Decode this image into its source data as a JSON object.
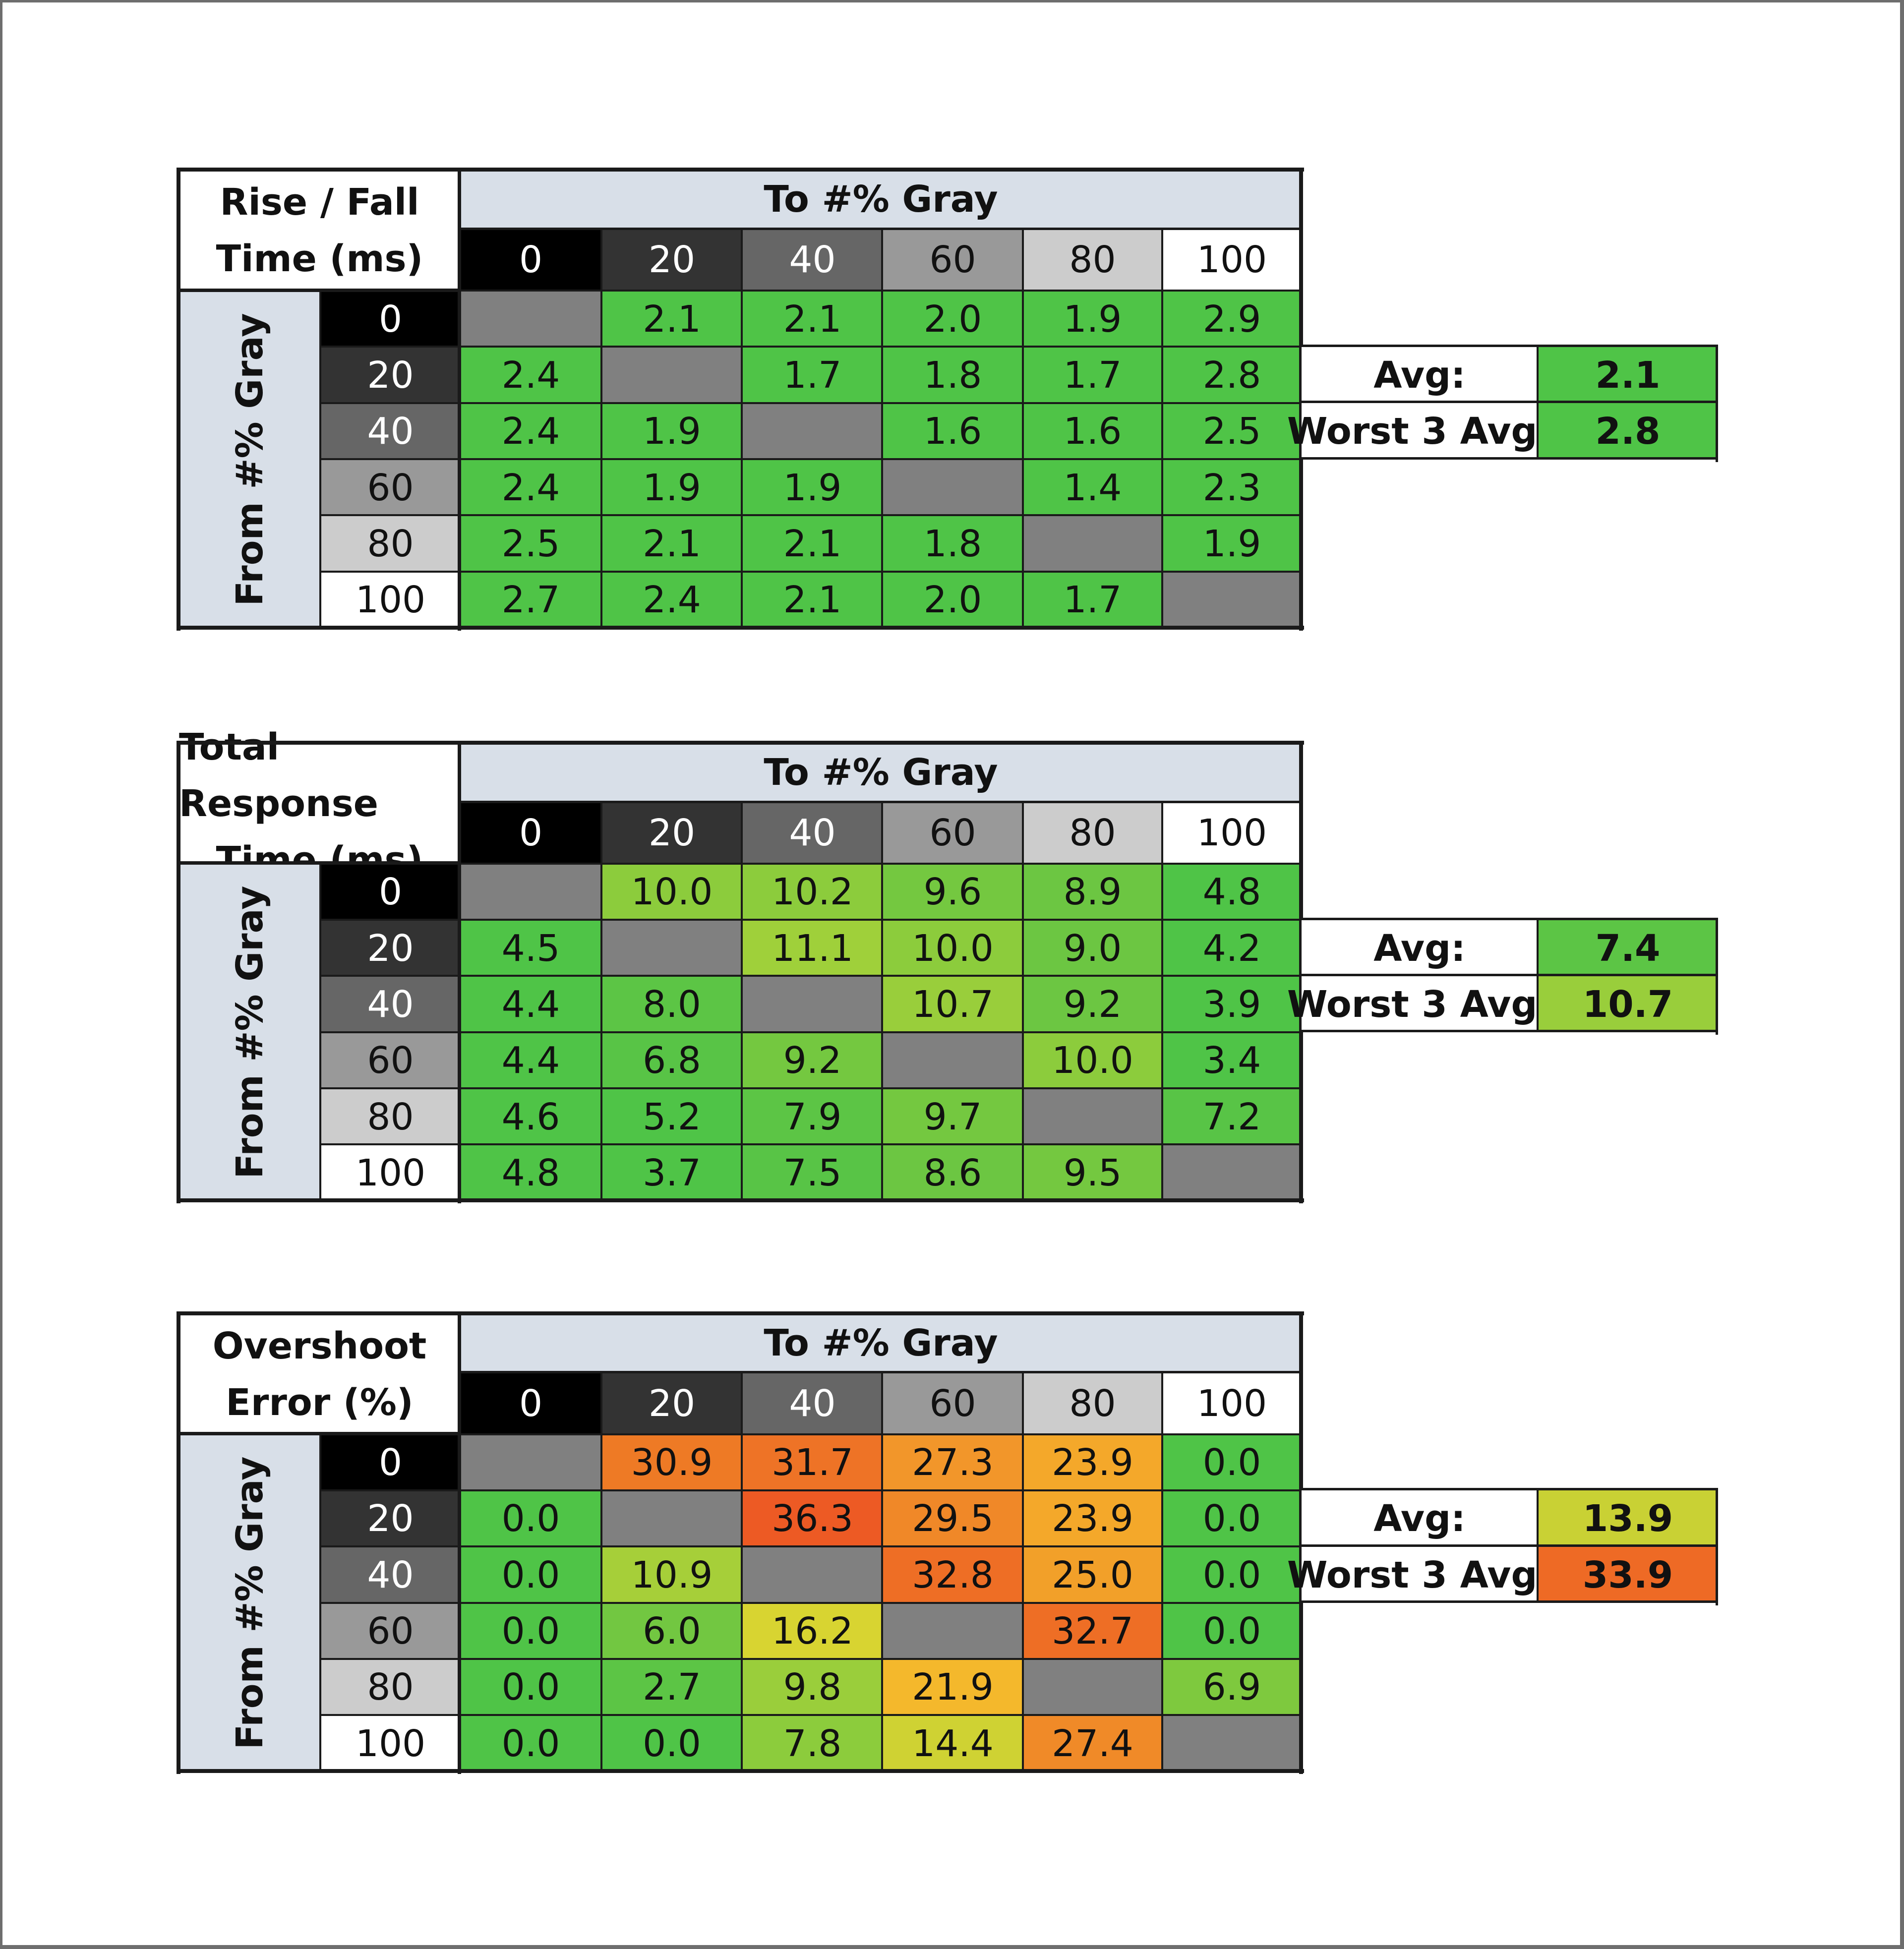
{
  "chart_data": [
    {
      "type": "table",
      "title_lines": [
        "Rise / Fall",
        "Time (ms)"
      ],
      "column_header": "To #% Gray",
      "row_header": "From #% Gray",
      "levels": [
        "0",
        "20",
        "40",
        "60",
        "80",
        "100"
      ],
      "values": [
        [
          null,
          2.1,
          2.1,
          2.0,
          1.9,
          2.9
        ],
        [
          2.4,
          null,
          1.7,
          1.8,
          1.7,
          2.8
        ],
        [
          2.4,
          1.9,
          null,
          1.6,
          1.6,
          2.5
        ],
        [
          2.4,
          1.9,
          1.9,
          null,
          1.4,
          2.3
        ],
        [
          2.5,
          2.1,
          2.1,
          1.8,
          null,
          1.9
        ],
        [
          2.7,
          2.4,
          2.1,
          2.0,
          1.7,
          null
        ]
      ],
      "cell_colors": [
        [
          "#808080",
          "#4fc447",
          "#4fc447",
          "#4fc447",
          "#4fc447",
          "#4fc447"
        ],
        [
          "#4fc447",
          "#808080",
          "#4fc447",
          "#4fc447",
          "#4fc447",
          "#4fc447"
        ],
        [
          "#4fc447",
          "#4fc447",
          "#808080",
          "#4fc447",
          "#4fc447",
          "#4fc447"
        ],
        [
          "#4fc447",
          "#4fc447",
          "#4fc447",
          "#808080",
          "#4fc447",
          "#4fc447"
        ],
        [
          "#4fc447",
          "#4fc447",
          "#4fc447",
          "#4fc447",
          "#808080",
          "#4fc447"
        ],
        [
          "#4fc447",
          "#4fc447",
          "#4fc447",
          "#4fc447",
          "#4fc447",
          "#808080"
        ]
      ],
      "stats": [
        {
          "label": "Avg:",
          "value": "2.1",
          "color": "#4fc447"
        },
        {
          "label": "Worst 3 Avg:",
          "value": "2.8",
          "color": "#4fc447"
        }
      ]
    },
    {
      "type": "table",
      "title_lines": [
        "Total Response",
        "Time (ms)"
      ],
      "column_header": "To #% Gray",
      "row_header": "From #% Gray",
      "levels": [
        "0",
        "20",
        "40",
        "60",
        "80",
        "100"
      ],
      "values": [
        [
          null,
          10.0,
          10.2,
          9.6,
          8.9,
          4.8
        ],
        [
          4.5,
          null,
          11.1,
          10.0,
          9.0,
          4.2
        ],
        [
          4.4,
          8.0,
          null,
          10.7,
          9.2,
          3.9
        ],
        [
          4.4,
          6.8,
          9.2,
          null,
          10.0,
          3.4
        ],
        [
          4.6,
          5.2,
          7.9,
          9.7,
          null,
          7.2
        ],
        [
          4.8,
          3.7,
          7.5,
          8.6,
          9.5,
          null
        ]
      ],
      "cell_colors": [
        [
          "#808080",
          "#8ccc3c",
          "#8ccc3c",
          "#74c840",
          "#6cc642",
          "#4fc447"
        ],
        [
          "#4fc447",
          "#808080",
          "#9fd03a",
          "#8ccc3c",
          "#6cc642",
          "#4fc447"
        ],
        [
          "#4fc447",
          "#5cc545",
          "#808080",
          "#99ce3b",
          "#6cc642",
          "#4fc447"
        ],
        [
          "#4fc447",
          "#58c446",
          "#74c840",
          "#808080",
          "#8ccc3c",
          "#4fc447"
        ],
        [
          "#4fc447",
          "#4fc447",
          "#5cc545",
          "#74c840",
          "#808080",
          "#58c446"
        ],
        [
          "#4fc447",
          "#4fc447",
          "#58c446",
          "#6cc642",
          "#74c840",
          "#808080"
        ]
      ],
      "stats": [
        {
          "label": "Avg:",
          "value": "7.4",
          "color": "#5cc545"
        },
        {
          "label": "Worst 3 Avg:",
          "value": "10.7",
          "color": "#99ce3b"
        }
      ]
    },
    {
      "type": "table",
      "title_lines": [
        "Overshoot",
        "Error (%)"
      ],
      "column_header": "To #% Gray",
      "row_header": "From #% Gray",
      "levels": [
        "0",
        "20",
        "40",
        "60",
        "80",
        "100"
      ],
      "values": [
        [
          null,
          30.9,
          31.7,
          27.3,
          23.9,
          0.0
        ],
        [
          0.0,
          null,
          36.3,
          29.5,
          23.9,
          0.0
        ],
        [
          0.0,
          10.9,
          null,
          32.8,
          25.0,
          0.0
        ],
        [
          0.0,
          6.0,
          16.2,
          null,
          32.7,
          0.0
        ],
        [
          0.0,
          2.7,
          9.8,
          21.9,
          null,
          6.9
        ],
        [
          0.0,
          0.0,
          7.8,
          14.4,
          27.4,
          null
        ]
      ],
      "cell_colors": [
        [
          "#808080",
          "#ee7a25",
          "#ee7326",
          "#f2962a",
          "#f4a82a",
          "#4fc447"
        ],
        [
          "#4fc447",
          "#808080",
          "#ed5a24",
          "#f08828",
          "#f4a82a",
          "#4fc447"
        ],
        [
          "#4fc447",
          "#a6cf39",
          "#808080",
          "#ee6e25",
          "#f2a029",
          "#4fc447"
        ],
        [
          "#4fc447",
          "#72c741",
          "#d8d431",
          "#808080",
          "#ee6e25",
          "#4fc447"
        ],
        [
          "#4fc447",
          "#5cc545",
          "#9ace3b",
          "#f4b82c",
          "#808080",
          "#7ec93e"
        ],
        [
          "#4fc447",
          "#4fc447",
          "#8ccc3c",
          "#cfd233",
          "#f08a28",
          "#808080"
        ]
      ],
      "stats": [
        {
          "label": "Avg:",
          "value": "13.9",
          "color": "#c9d134"
        },
        {
          "label": "Worst 3 Avg:",
          "value": "33.9",
          "color": "#ee6a25"
        }
      ]
    }
  ]
}
